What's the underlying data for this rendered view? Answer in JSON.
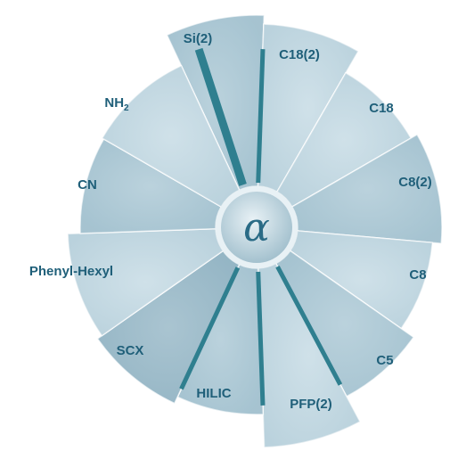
{
  "center": {
    "symbol": "α"
  },
  "segments": [
    {
      "id": "si2",
      "label": "Si(2)"
    },
    {
      "id": "c18-2",
      "label": "C18(2)"
    },
    {
      "id": "c18",
      "label": "C18"
    },
    {
      "id": "c8-2",
      "label": "C8(2)"
    },
    {
      "id": "c8",
      "label": "C8"
    },
    {
      "id": "c5",
      "label": "C5"
    },
    {
      "id": "pfp2",
      "label": "PFP(2)"
    },
    {
      "id": "hilic",
      "label": "HILIC"
    },
    {
      "id": "scx",
      "label": "SCX"
    },
    {
      "id": "phenyl",
      "label": "Phenyl-Hexyl"
    },
    {
      "id": "cn",
      "label": "CN"
    },
    {
      "id": "nh2",
      "label": "NH",
      "sub": "2"
    }
  ],
  "colors": {
    "segment_light": "#c9dde6",
    "segment_mid": "#a9c6d3",
    "segment_dark": "#8fb1c1",
    "divider": "#2f7f8f",
    "text": "#1f5f79",
    "center_fill": "#bcd3de",
    "center_ring": "#e8f1f5"
  }
}
